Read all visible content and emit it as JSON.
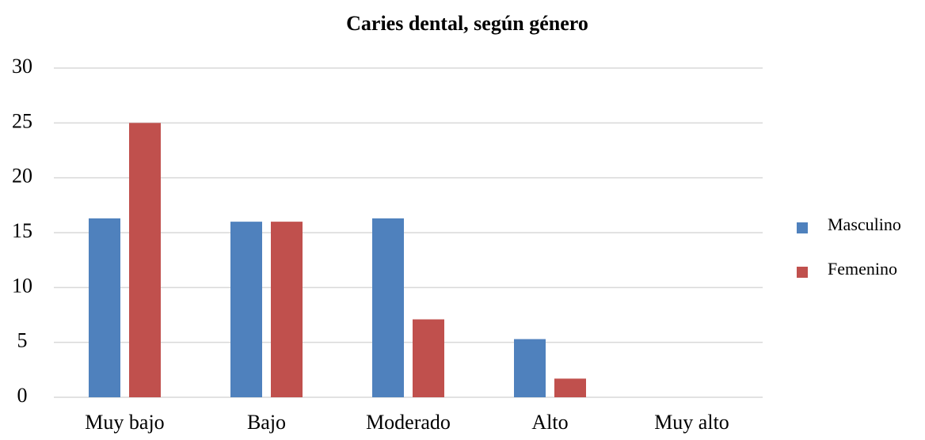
{
  "chart_data": {
    "type": "bar",
    "title": "Caries dental, según género",
    "categories": [
      "Muy bajo",
      "Bajo",
      "Moderado",
      "Alto",
      "Muy alto"
    ],
    "series": [
      {
        "name": "Masculino",
        "color": "#4f81bd",
        "values": [
          16.3,
          16,
          16.3,
          5.3,
          0
        ]
      },
      {
        "name": "Femenino",
        "color": "#c0504d",
        "values": [
          25,
          16,
          7.1,
          1.7,
          0
        ]
      }
    ],
    "ylim": [
      0,
      30
    ],
    "yticks": [
      0,
      5,
      10,
      15,
      20,
      25,
      30
    ],
    "grid": true,
    "legend": "right"
  }
}
